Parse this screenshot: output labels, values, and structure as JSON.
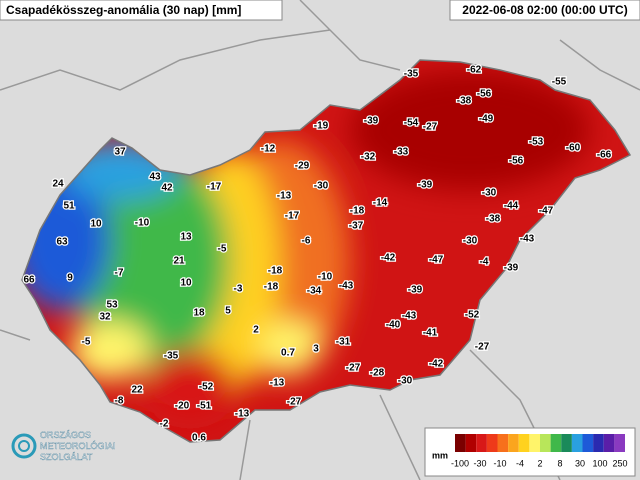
{
  "header": {
    "title": "Csapadékösszeg-anomália (30 nap) [mm]",
    "time": "2022-06-08 02:00 (00:00 UTC)"
  },
  "stations": [
    -35,
    -62,
    -55,
    -38,
    -56,
    -19,
    -39,
    -54,
    -27,
    -49,
    -53,
    -60,
    -66,
    -12,
    -32,
    -33,
    -56,
    -29,
    -30,
    -39,
    -30,
    -17,
    -13,
    -44,
    -47,
    -18,
    -14,
    -17,
    -37,
    -38,
    -30,
    -43,
    -6,
    -42,
    -47,
    -4,
    -39,
    -18,
    -10,
    -43,
    -18,
    -34,
    -39,
    -52,
    -43,
    -40,
    -41,
    -31,
    -27,
    -42,
    -27,
    -28,
    -30,
    -13,
    -27,
    -13,
    -5,
    -3,
    2,
    0.7,
    3,
    5,
    37,
    43,
    42,
    24,
    51,
    10,
    -10,
    63,
    13,
    21,
    -7,
    9,
    66,
    10,
    53,
    32,
    18,
    -5,
    -35,
    22,
    -52,
    -8,
    -20,
    -51,
    -2,
    0.6
  ],
  "legend": {
    "unit": "mm",
    "ticks": [
      -100,
      -30,
      -10,
      -4,
      2,
      8,
      30,
      100,
      250
    ],
    "colors": [
      "#7a0000",
      "#b00000",
      "#d81818",
      "#ee3a1a",
      "#f7701c",
      "#fba51e",
      "#ffd21e",
      "#fff46a",
      "#b8e65a",
      "#40b84a",
      "#1a8a5a",
      "#2aa0e0",
      "#1e5ad8",
      "#2a2ab0",
      "#5a1ea8",
      "#8a3ac0"
    ]
  },
  "logo": {
    "line1": "ORSZÁGOS",
    "line2": "METEOROLÓGIAI",
    "line3": "SZOLGÁLAT"
  }
}
